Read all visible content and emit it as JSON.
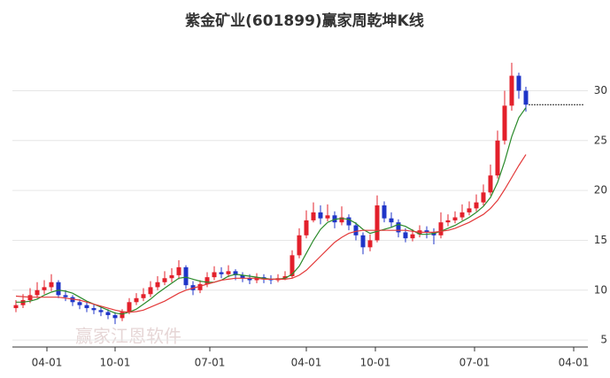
{
  "chart_data": {
    "type": "candlestick",
    "title": "紫金矿业(601899)赢家周乾坤K线",
    "watermark": "赢家江恩软件",
    "up_color": "#e3202b",
    "down_color": "#1f35c8",
    "open": [
      8.2,
      8.5,
      9.0,
      9.5,
      10.0,
      10.3,
      10.8,
      9.5,
      9.3,
      8.8,
      8.5,
      8.2,
      8.0,
      7.8,
      7.5,
      7.2,
      7.8,
      8.8,
      9.2,
      9.6,
      10.3,
      10.8,
      11.2,
      11.5,
      12.3,
      10.5,
      10.0,
      10.6,
      11.3,
      11.8,
      11.6,
      11.9,
      11.5,
      11.2,
      11.0,
      11.3,
      11.1,
      11.0,
      11.2,
      11.4,
      13.5,
      15.5,
      17.0,
      17.8,
      17.2,
      17.5,
      16.8,
      17.3,
      16.5,
      15.5,
      14.3,
      15.0,
      18.5,
      17.2,
      16.8,
      15.8,
      15.2,
      15.6,
      16.0,
      15.8,
      15.5,
      16.8,
      17.0,
      17.3,
      17.8,
      18.2,
      18.8,
      19.8,
      21.5,
      25.0,
      28.5,
      31.5,
      30.0
    ],
    "high": [
      9.0,
      9.6,
      10.2,
      10.8,
      11.0,
      11.6,
      11.0,
      10.0,
      9.5,
      9.1,
      8.9,
      8.6,
      8.4,
      8.1,
      7.8,
      8.1,
      9.2,
      9.7,
      10.2,
      10.9,
      11.4,
      11.9,
      12.2,
      13.0,
      12.5,
      10.9,
      11.0,
      11.8,
      12.4,
      12.3,
      12.5,
      12.1,
      11.8,
      11.6,
      11.7,
      11.6,
      11.5,
      11.6,
      11.9,
      14.0,
      16.2,
      18.0,
      18.8,
      18.5,
      18.6,
      17.9,
      18.4,
      17.6,
      16.8,
      15.8,
      15.6,
      19.5,
      18.9,
      17.8,
      17.1,
      16.2,
      16.1,
      16.5,
      16.4,
      16.2,
      17.8,
      17.6,
      17.9,
      18.6,
      18.9,
      19.6,
      20.6,
      22.6,
      26.0,
      30.0,
      32.8,
      31.8,
      30.4
    ],
    "low": [
      7.8,
      8.2,
      8.7,
      9.2,
      9.6,
      9.9,
      9.2,
      8.9,
      8.4,
      8.1,
      7.8,
      7.6,
      7.4,
      7.1,
      6.6,
      6.9,
      7.6,
      8.5,
      8.9,
      9.3,
      10.0,
      10.5,
      10.8,
      11.1,
      10.1,
      9.5,
      9.7,
      10.3,
      11.0,
      11.2,
      11.3,
      11.0,
      10.8,
      10.6,
      10.7,
      10.7,
      10.6,
      10.8,
      11.0,
      11.2,
      13.2,
      15.2,
      16.8,
      16.6,
      16.9,
      16.2,
      16.5,
      16.0,
      15.0,
      13.6,
      13.9,
      14.8,
      16.8,
      16.3,
      15.3,
      14.8,
      14.9,
      15.3,
      15.2,
      14.6,
      15.2,
      16.4,
      16.7,
      17.0,
      17.5,
      17.9,
      18.5,
      19.5,
      21.2,
      24.6,
      28.0,
      29.2,
      27.9
    ],
    "close": [
      8.5,
      9.0,
      9.5,
      10.0,
      10.3,
      10.8,
      9.5,
      9.3,
      8.8,
      8.5,
      8.2,
      8.0,
      7.8,
      7.5,
      7.2,
      7.8,
      8.8,
      9.2,
      9.6,
      10.3,
      10.8,
      11.2,
      11.5,
      12.3,
      10.5,
      10.0,
      10.6,
      11.3,
      11.8,
      11.6,
      11.9,
      11.5,
      11.2,
      11.0,
      11.3,
      11.1,
      11.0,
      11.2,
      11.4,
      13.5,
      15.5,
      17.0,
      17.8,
      17.2,
      17.5,
      16.8,
      17.3,
      16.5,
      15.5,
      14.3,
      15.0,
      18.5,
      17.2,
      16.8,
      15.8,
      15.2,
      15.6,
      16.0,
      15.8,
      15.5,
      16.8,
      17.0,
      17.3,
      17.8,
      18.2,
      18.8,
      19.8,
      21.5,
      25.0,
      28.5,
      31.5,
      30.0,
      28.6
    ],
    "lines": [
      {
        "color": "#2a8a2a",
        "values": [
          8.8,
          8.8,
          8.9,
          9.1,
          9.5,
          9.8,
          10.0,
          9.9,
          9.7,
          9.3,
          8.9,
          8.6,
          8.3,
          8.0,
          7.7,
          7.6,
          7.8,
          8.1,
          8.6,
          9.1,
          9.7,
          10.2,
          10.7,
          11.2,
          11.3,
          11.1,
          10.9,
          10.8,
          10.8,
          11.0,
          11.4,
          11.6,
          11.5,
          11.4,
          11.3,
          11.2,
          11.1,
          11.1,
          11.2,
          11.6,
          12.4,
          13.7,
          15.0,
          16.1,
          16.8,
          17.1,
          17.2,
          17.1,
          16.7,
          16.1,
          15.7,
          15.9,
          16.1,
          16.3,
          16.6,
          16.4,
          16.0,
          15.6,
          15.6,
          15.7,
          15.9,
          16.2,
          16.5,
          16.9,
          17.3,
          17.8,
          18.4,
          19.3,
          20.8,
          22.9,
          25.4,
          27.3,
          28.3
        ]
      },
      {
        "color": "#e33a3a",
        "values": [
          9.4,
          9.35,
          9.3,
          9.3,
          9.3,
          9.3,
          9.3,
          9.2,
          9.1,
          9.0,
          8.8,
          8.6,
          8.4,
          8.2,
          8.0,
          7.85,
          7.8,
          7.85,
          8.0,
          8.3,
          8.6,
          8.9,
          9.3,
          9.7,
          10.0,
          10.2,
          10.4,
          10.6,
          10.8,
          11.0,
          11.1,
          11.2,
          11.2,
          11.2,
          11.2,
          11.1,
          11.1,
          11.1,
          11.1,
          11.2,
          11.5,
          12.0,
          12.7,
          13.4,
          14.1,
          14.8,
          15.3,
          15.7,
          15.9,
          16.0,
          16.0,
          16.0,
          16.0,
          16.0,
          16.0,
          16.0,
          15.9,
          15.8,
          15.8,
          15.8,
          15.9,
          16.0,
          16.2,
          16.5,
          16.8,
          17.2,
          17.6,
          18.2,
          19.0,
          20.1,
          21.3,
          22.5,
          23.6
        ]
      }
    ],
    "xlim": [
      -0.5,
      79.5
    ],
    "xticks": [
      {
        "value": 4.375,
        "label": "04-01"
      },
      {
        "value": 14,
        "label": "10-01"
      },
      {
        "value": 27.375,
        "label": "07-01"
      },
      {
        "value": 41,
        "label": "04-01"
      },
      {
        "value": 50.75,
        "label": "10-01"
      },
      {
        "value": 64.75,
        "label": "07-01"
      },
      {
        "value": 78.75,
        "label": "04-01"
      }
    ],
    "ylim": [
      4.3,
      35.1
    ],
    "yticks": [
      5,
      10,
      15,
      20,
      25,
      30
    ],
    "grid": true
  }
}
